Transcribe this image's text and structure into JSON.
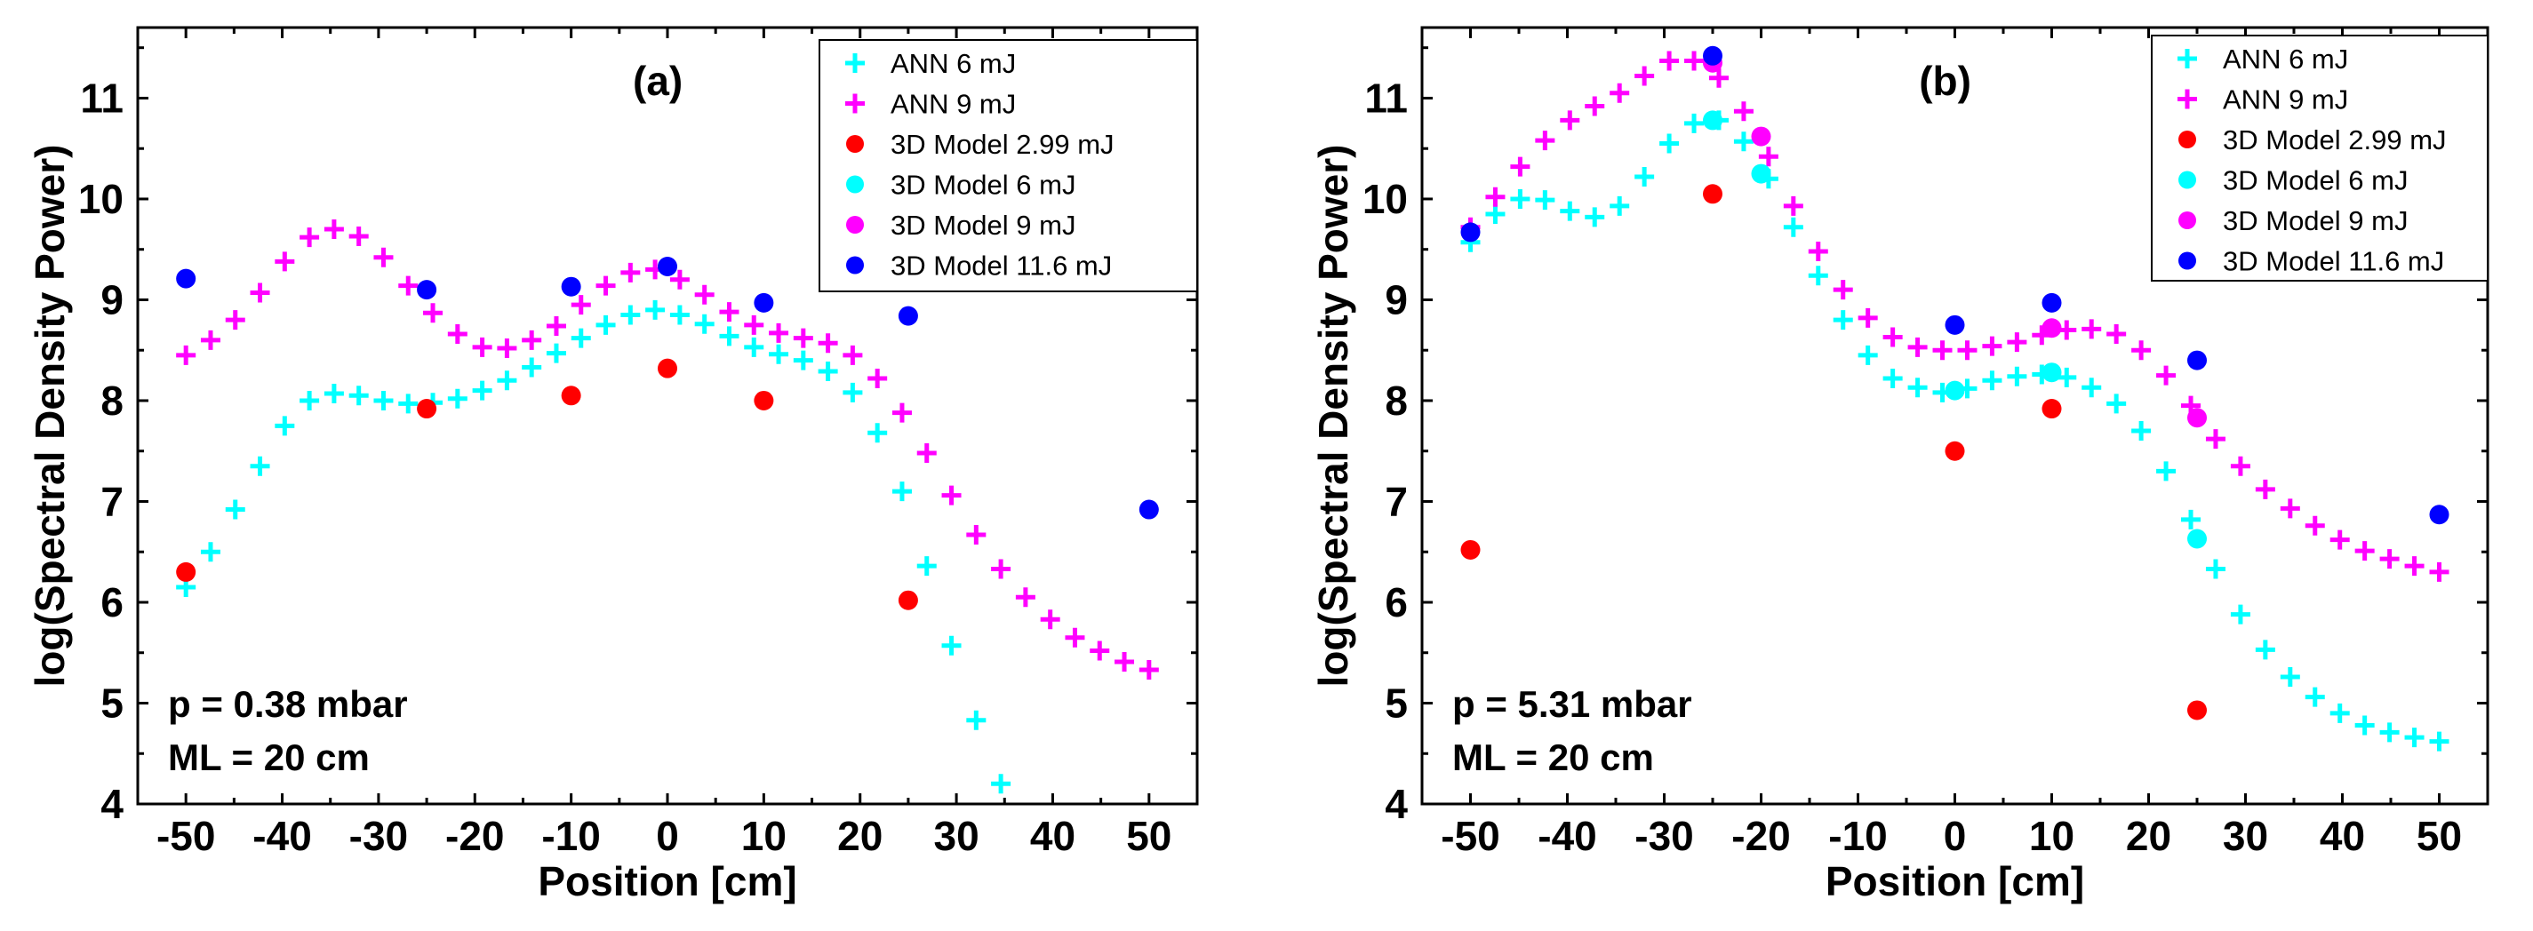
{
  "colors": {
    "ann6": "#00ffff",
    "ann9": "#ff00ff",
    "m299": "#ff0000",
    "m6": "#00ffff",
    "m9": "#ff00ff",
    "m116": "#0000ff"
  },
  "chart_data": [
    {
      "type": "scatter",
      "panel_label": "(a)",
      "xlabel": "Position [cm]",
      "ylabel": "log(Spectral Density Power)",
      "xlim": [
        -55,
        55
      ],
      "ylim": [
        4,
        11.7
      ],
      "xticks": [
        -50,
        -40,
        -30,
        -20,
        -10,
        0,
        10,
        20,
        30,
        40,
        50
      ],
      "yticks": [
        4,
        5,
        6,
        7,
        8,
        9,
        10,
        11
      ],
      "legend_position": "top-right",
      "annotations": [
        "p = 0.38 mbar",
        "ML = 20 cm"
      ],
      "ann_x": {
        "start": -50,
        "end": 50,
        "count": 40
      },
      "series": [
        {
          "name": "ANN 6 mJ",
          "marker": "plus",
          "color_key": "ann6",
          "y": [
            6.15,
            6.5,
            6.92,
            7.35,
            7.75,
            8.0,
            8.07,
            8.05,
            8.0,
            7.97,
            7.98,
            8.02,
            8.1,
            8.2,
            8.33,
            8.47,
            8.62,
            8.75,
            8.85,
            8.9,
            8.85,
            8.76,
            8.64,
            8.53,
            8.46,
            8.4,
            8.29,
            8.08,
            7.68,
            7.1,
            6.36,
            5.57,
            4.83,
            4.2,
            null,
            null,
            null,
            null,
            null,
            null
          ]
        },
        {
          "name": "ANN 9 mJ",
          "marker": "plus",
          "color_key": "ann9",
          "y": [
            8.45,
            8.6,
            8.8,
            9.07,
            9.38,
            9.62,
            9.7,
            9.63,
            9.42,
            9.14,
            8.87,
            8.66,
            8.53,
            8.52,
            8.6,
            8.74,
            8.95,
            9.14,
            9.27,
            9.3,
            9.2,
            9.05,
            8.88,
            8.75,
            8.67,
            8.62,
            8.57,
            8.45,
            8.22,
            7.88,
            7.48,
            7.06,
            6.67,
            6.33,
            6.05,
            5.83,
            5.65,
            5.52,
            5.41,
            5.33
          ]
        },
        {
          "name": "3D Model 2.99 mJ",
          "marker": "circle",
          "color_key": "m299",
          "points": [
            [
              -50,
              6.3
            ],
            [
              -25,
              7.92
            ],
            [
              -10,
              8.05
            ],
            [
              0,
              8.32
            ],
            [
              10,
              8.0
            ],
            [
              25,
              6.02
            ]
          ]
        },
        {
          "name": "3D Model 6 mJ",
          "marker": "circle",
          "color_key": "m6",
          "points": []
        },
        {
          "name": "3D Model 9 mJ",
          "marker": "circle",
          "color_key": "m9",
          "points": []
        },
        {
          "name": "3D Model 11.6 mJ",
          "marker": "circle",
          "color_key": "m116",
          "points": [
            [
              -50,
              9.21
            ],
            [
              -25,
              9.1
            ],
            [
              -10,
              9.13
            ],
            [
              0,
              9.33
            ],
            [
              10,
              8.97
            ],
            [
              25,
              8.84
            ],
            [
              50,
              6.92
            ]
          ]
        }
      ]
    },
    {
      "type": "scatter",
      "panel_label": "(b)",
      "xlabel": "Position [cm]",
      "ylabel": "log(Spectral Density Power)",
      "xlim": [
        -55,
        55
      ],
      "ylim": [
        4,
        11.7
      ],
      "xticks": [
        -50,
        -40,
        -30,
        -20,
        -10,
        0,
        10,
        20,
        30,
        40,
        50
      ],
      "yticks": [
        4,
        5,
        6,
        7,
        8,
        9,
        10,
        11
      ],
      "legend_position": "top-right",
      "annotations": [
        "p = 5.31 mbar",
        "ML = 20 cm"
      ],
      "ann_x": {
        "start": -50,
        "end": 50,
        "count": 40
      },
      "series": [
        {
          "name": "ANN 6 mJ",
          "marker": "plus",
          "color_key": "ann6",
          "y": [
            9.57,
            9.85,
            10.0,
            9.99,
            9.88,
            9.82,
            9.93,
            10.22,
            10.55,
            10.75,
            10.78,
            10.57,
            10.2,
            9.72,
            9.24,
            8.8,
            8.45,
            8.22,
            8.13,
            8.08,
            8.12,
            8.2,
            8.24,
            8.26,
            8.23,
            8.13,
            7.97,
            7.7,
            7.3,
            6.82,
            6.33,
            5.88,
            5.53,
            5.26,
            5.06,
            4.9,
            4.78,
            4.71,
            4.66,
            4.62
          ]
        },
        {
          "name": "ANN 9 mJ",
          "marker": "plus",
          "color_key": "ann9",
          "y": [
            9.72,
            10.02,
            10.32,
            10.58,
            10.78,
            10.92,
            11.05,
            11.22,
            11.37,
            11.37,
            11.2,
            10.87,
            10.42,
            9.93,
            9.48,
            9.1,
            8.82,
            8.63,
            8.53,
            8.5,
            8.5,
            8.54,
            8.58,
            8.65,
            8.7,
            8.71,
            8.66,
            8.5,
            8.25,
            7.95,
            7.62,
            7.35,
            7.12,
            6.93,
            6.76,
            6.62,
            6.51,
            6.43,
            6.36,
            6.3
          ]
        },
        {
          "name": "3D Model 2.99 mJ",
          "marker": "circle",
          "color_key": "m299",
          "points": [
            [
              -50,
              6.52
            ],
            [
              -25,
              10.05
            ],
            [
              0,
              7.5
            ],
            [
              10,
              7.92
            ],
            [
              25,
              4.93
            ]
          ]
        },
        {
          "name": "3D Model 6 mJ",
          "marker": "circle",
          "color_key": "m6",
          "points": [
            [
              -25,
              10.78
            ],
            [
              -20,
              10.25
            ],
            [
              0,
              8.1
            ],
            [
              10,
              8.28
            ],
            [
              25,
              6.63
            ]
          ]
        },
        {
          "name": "3D Model 9 mJ",
          "marker": "circle",
          "color_key": "m9",
          "points": [
            [
              -25,
              11.35
            ],
            [
              -20,
              10.62
            ],
            [
              10,
              8.72
            ],
            [
              25,
              7.83
            ]
          ]
        },
        {
          "name": "3D Model 11.6 mJ",
          "marker": "circle",
          "color_key": "m116",
          "points": [
            [
              -50,
              9.67
            ],
            [
              -25,
              11.42
            ],
            [
              0,
              8.75
            ],
            [
              10,
              8.97
            ],
            [
              25,
              8.4
            ],
            [
              50,
              6.87
            ]
          ]
        }
      ]
    }
  ]
}
